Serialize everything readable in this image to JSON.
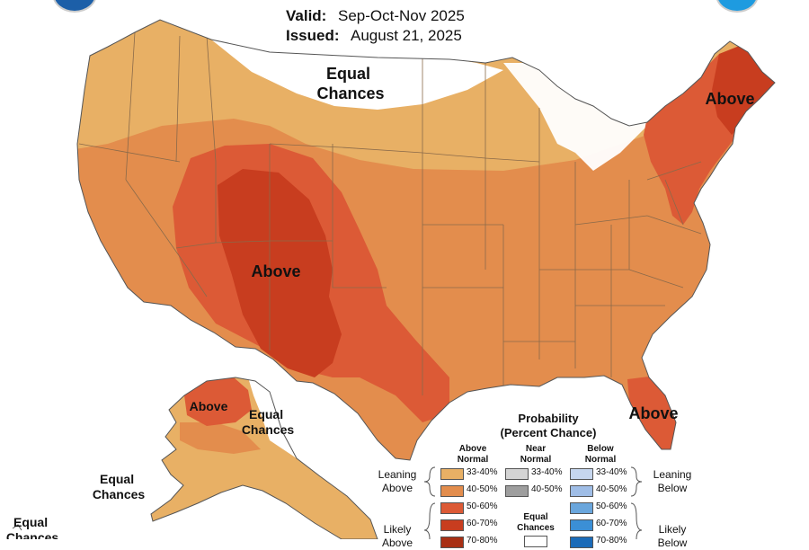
{
  "header": {
    "valid_label": "Valid:",
    "valid_value": "Sep-Oct-Nov 2025",
    "issued_label": "Issued:",
    "issued_value": "August 21, 2025"
  },
  "map_labels": {
    "north_equal": "Equal\nChances",
    "southwest_above": "Above",
    "northeast_above": "Above",
    "florida_above": "Above",
    "alaska_above": "Above",
    "alaska_equal": "Equal\nChances",
    "alaska_sw_equal": "Equal\nChances",
    "hawaii_equal": "Equal\nChances"
  },
  "legend": {
    "title_line1": "Probability",
    "title_line2": "(Percent Chance)",
    "col_above": "Above\nNormal",
    "col_near": "Near\nNormal",
    "col_below": "Below\nNormal",
    "group_leaning_above": "Leaning\nAbove",
    "group_leaning_below": "Leaning\nBelow",
    "group_likely_above": "Likely\nAbove",
    "group_likely_below": "Likely\nBelow",
    "equal_chances": "Equal\nChances",
    "above_bins": [
      "33-40%",
      "40-50%",
      "50-60%",
      "60-70%",
      "70-80%"
    ],
    "near_bins": [
      "33-40%",
      "40-50%"
    ],
    "below_bins": [
      "33-40%",
      "40-50%",
      "50-60%",
      "60-70%",
      "70-80%"
    ]
  },
  "colors": {
    "above_33_40": "#e8b065",
    "above_40_50": "#e38d4d",
    "above_50_60": "#dc5a36",
    "above_60_70": "#c83d1f",
    "above_70_80": "#a82f14",
    "near_33_40": "#d4d4d4",
    "near_40_50": "#9e9e9e",
    "below_33_40": "#c6d6ee",
    "below_40_50": "#9fbde6",
    "below_50_60": "#6aa6dc",
    "below_60_70": "#3b8fd6",
    "below_70_80": "#1b6bb8",
    "equal_chances": "#ffffff",
    "state_border": "#8a6a4a"
  },
  "icons": [
    "noaa-logo-icon",
    "nws-logo-icon"
  ]
}
